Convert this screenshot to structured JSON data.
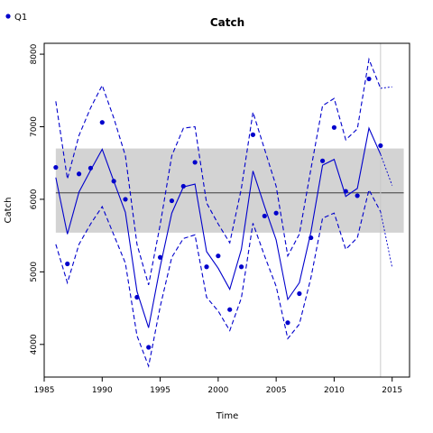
{
  "chart_data": {
    "type": "line",
    "title": "Catch",
    "xlabel": "Time",
    "ylabel": "Catch",
    "xlim": [
      1985,
      2016.5
    ],
    "ylim": [
      3550,
      8150
    ],
    "x_ticks": [
      1985,
      1990,
      1995,
      2000,
      2005,
      2010,
      2015
    ],
    "y_ticks": [
      4000,
      5000,
      6000,
      7000,
      8000
    ],
    "legend": {
      "position": "top-left",
      "entries": [
        "Q1"
      ]
    },
    "colors": {
      "series": "#0000cc",
      "mean_line": "#666666",
      "band": "#d3d3d3",
      "vline": "#c8c8c8"
    },
    "band": {
      "x_start": 1986,
      "x_end": 2016,
      "lower": 5540,
      "upper": 6700
    },
    "mean": {
      "x_start": 1986,
      "x_end": 2016,
      "value": 6090
    },
    "vline_x": 2014,
    "observed": {
      "name": "Q1",
      "x": [
        1986,
        1987,
        1988,
        1989,
        1990,
        1991,
        1992,
        1993,
        1994,
        1995,
        1996,
        1997,
        1998,
        1999,
        2000,
        2001,
        2002,
        2003,
        2004,
        2005,
        2006,
        2007,
        2008,
        2009,
        2010,
        2011,
        2012,
        2013,
        2014
      ],
      "y": [
        6440,
        5110,
        6350,
        6430,
        7060,
        6250,
        6000,
        4650,
        3960,
        5200,
        5980,
        6180,
        6510,
        5070,
        5220,
        4480,
        5070,
        6890,
        5770,
        5810,
        4300,
        4700,
        5470,
        6530,
        6990,
        6110,
        6050,
        7660,
        6740
      ]
    },
    "fitted": {
      "x": [
        1986,
        1987,
        1988,
        1989,
        1990,
        1991,
        1992,
        1993,
        1994,
        1995,
        1996,
        1997,
        1998,
        1999,
        2000,
        2001,
        2002,
        2003,
        2004,
        2005,
        2006,
        2007,
        2008,
        2009,
        2010,
        2011,
        2012,
        2013,
        2014
      ],
      "y": [
        6300,
        5520,
        6100,
        6400,
        6690,
        6250,
        5820,
        4730,
        4230,
        5070,
        5810,
        6170,
        6210,
        5280,
        5050,
        4760,
        5310,
        6390,
        5900,
        5440,
        4620,
        4850,
        5550,
        6470,
        6550,
        6040,
        6150,
        6980,
        6620
      ]
    },
    "upper_ci": {
      "x": [
        1986,
        1987,
        1988,
        1989,
        1990,
        1991,
        1992,
        1993,
        1994,
        1995,
        1996,
        1997,
        1998,
        1999,
        2000,
        2001,
        2002,
        2003,
        2004,
        2005,
        2006,
        2007,
        2008,
        2009,
        2010,
        2011,
        2012,
        2013,
        2014
      ],
      "y": [
        7350,
        6280,
        6880,
        7260,
        7570,
        7120,
        6600,
        5380,
        4820,
        5650,
        6600,
        6980,
        7000,
        5950,
        5660,
        5400,
        6150,
        7200,
        6690,
        6180,
        5220,
        5520,
        6420,
        7290,
        7390,
        6820,
        6970,
        7930,
        7530
      ]
    },
    "lower_ci": {
      "x": [
        1986,
        1987,
        1988,
        1989,
        1990,
        1991,
        1992,
        1993,
        1994,
        1995,
        1996,
        1997,
        1998,
        1999,
        2000,
        2001,
        2002,
        2003,
        2004,
        2005,
        2006,
        2007,
        2008,
        2009,
        2010,
        2011,
        2012,
        2013,
        2014
      ],
      "y": [
        5380,
        4850,
        5380,
        5660,
        5900,
        5510,
        5120,
        4120,
        3700,
        4520,
        5200,
        5460,
        5510,
        4650,
        4460,
        4190,
        4640,
        5670,
        5220,
        4800,
        4080,
        4280,
        4920,
        5740,
        5810,
        5310,
        5470,
        6130,
        5830
      ]
    },
    "forecast": {
      "x": [
        2014,
        2015
      ],
      "fitted": [
        6620,
        6190
      ],
      "upper": [
        7530,
        7550
      ],
      "lower": [
        5830,
        5060
      ]
    }
  }
}
